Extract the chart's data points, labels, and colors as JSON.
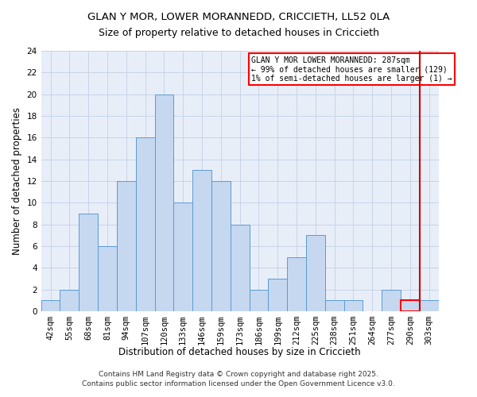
{
  "title": "GLAN Y MOR, LOWER MORANNEDD, CRICCIETH, LL52 0LA",
  "subtitle": "Size of property relative to detached houses in Criccieth",
  "xlabel": "Distribution of detached houses by size in Criccieth",
  "ylabel": "Number of detached properties",
  "bar_labels": [
    "42sqm",
    "55sqm",
    "68sqm",
    "81sqm",
    "94sqm",
    "107sqm",
    "120sqm",
    "133sqm",
    "146sqm",
    "159sqm",
    "173sqm",
    "186sqm",
    "199sqm",
    "212sqm",
    "225sqm",
    "238sqm",
    "251sqm",
    "264sqm",
    "277sqm",
    "290sqm",
    "303sqm"
  ],
  "bar_values": [
    1,
    2,
    9,
    6,
    12,
    16,
    20,
    10,
    13,
    12,
    8,
    2,
    3,
    5,
    7,
    1,
    1,
    0,
    2,
    1,
    1
  ],
  "bar_color": "#c5d8f0",
  "bar_edge_color": "#5b9bd5",
  "bar_highlight_index": 19,
  "bar_highlight_edge": "#ff0000",
  "vline_x_index": 19,
  "vline_color": "#cc0000",
  "ylim": [
    0,
    24
  ],
  "yticks": [
    0,
    2,
    4,
    6,
    8,
    10,
    12,
    14,
    16,
    18,
    20,
    22,
    24
  ],
  "annotation_text": "GLAN Y MOR LOWER MORANNEDD: 287sqm\n← 99% of detached houses are smaller (129)\n1% of semi-detached houses are larger (1) →",
  "annotation_box_color": "#ffffff",
  "annotation_box_edge": "#ff0000",
  "grid_color": "#c8d4e8",
  "background_color": "#e8eef8",
  "footer_line1": "Contains HM Land Registry data © Crown copyright and database right 2025.",
  "footer_line2": "Contains public sector information licensed under the Open Government Licence v3.0.",
  "title_fontsize": 9.5,
  "subtitle_fontsize": 9,
  "axis_label_fontsize": 8.5,
  "tick_fontsize": 7.5,
  "annot_fontsize": 7,
  "footer_fontsize": 6.5
}
